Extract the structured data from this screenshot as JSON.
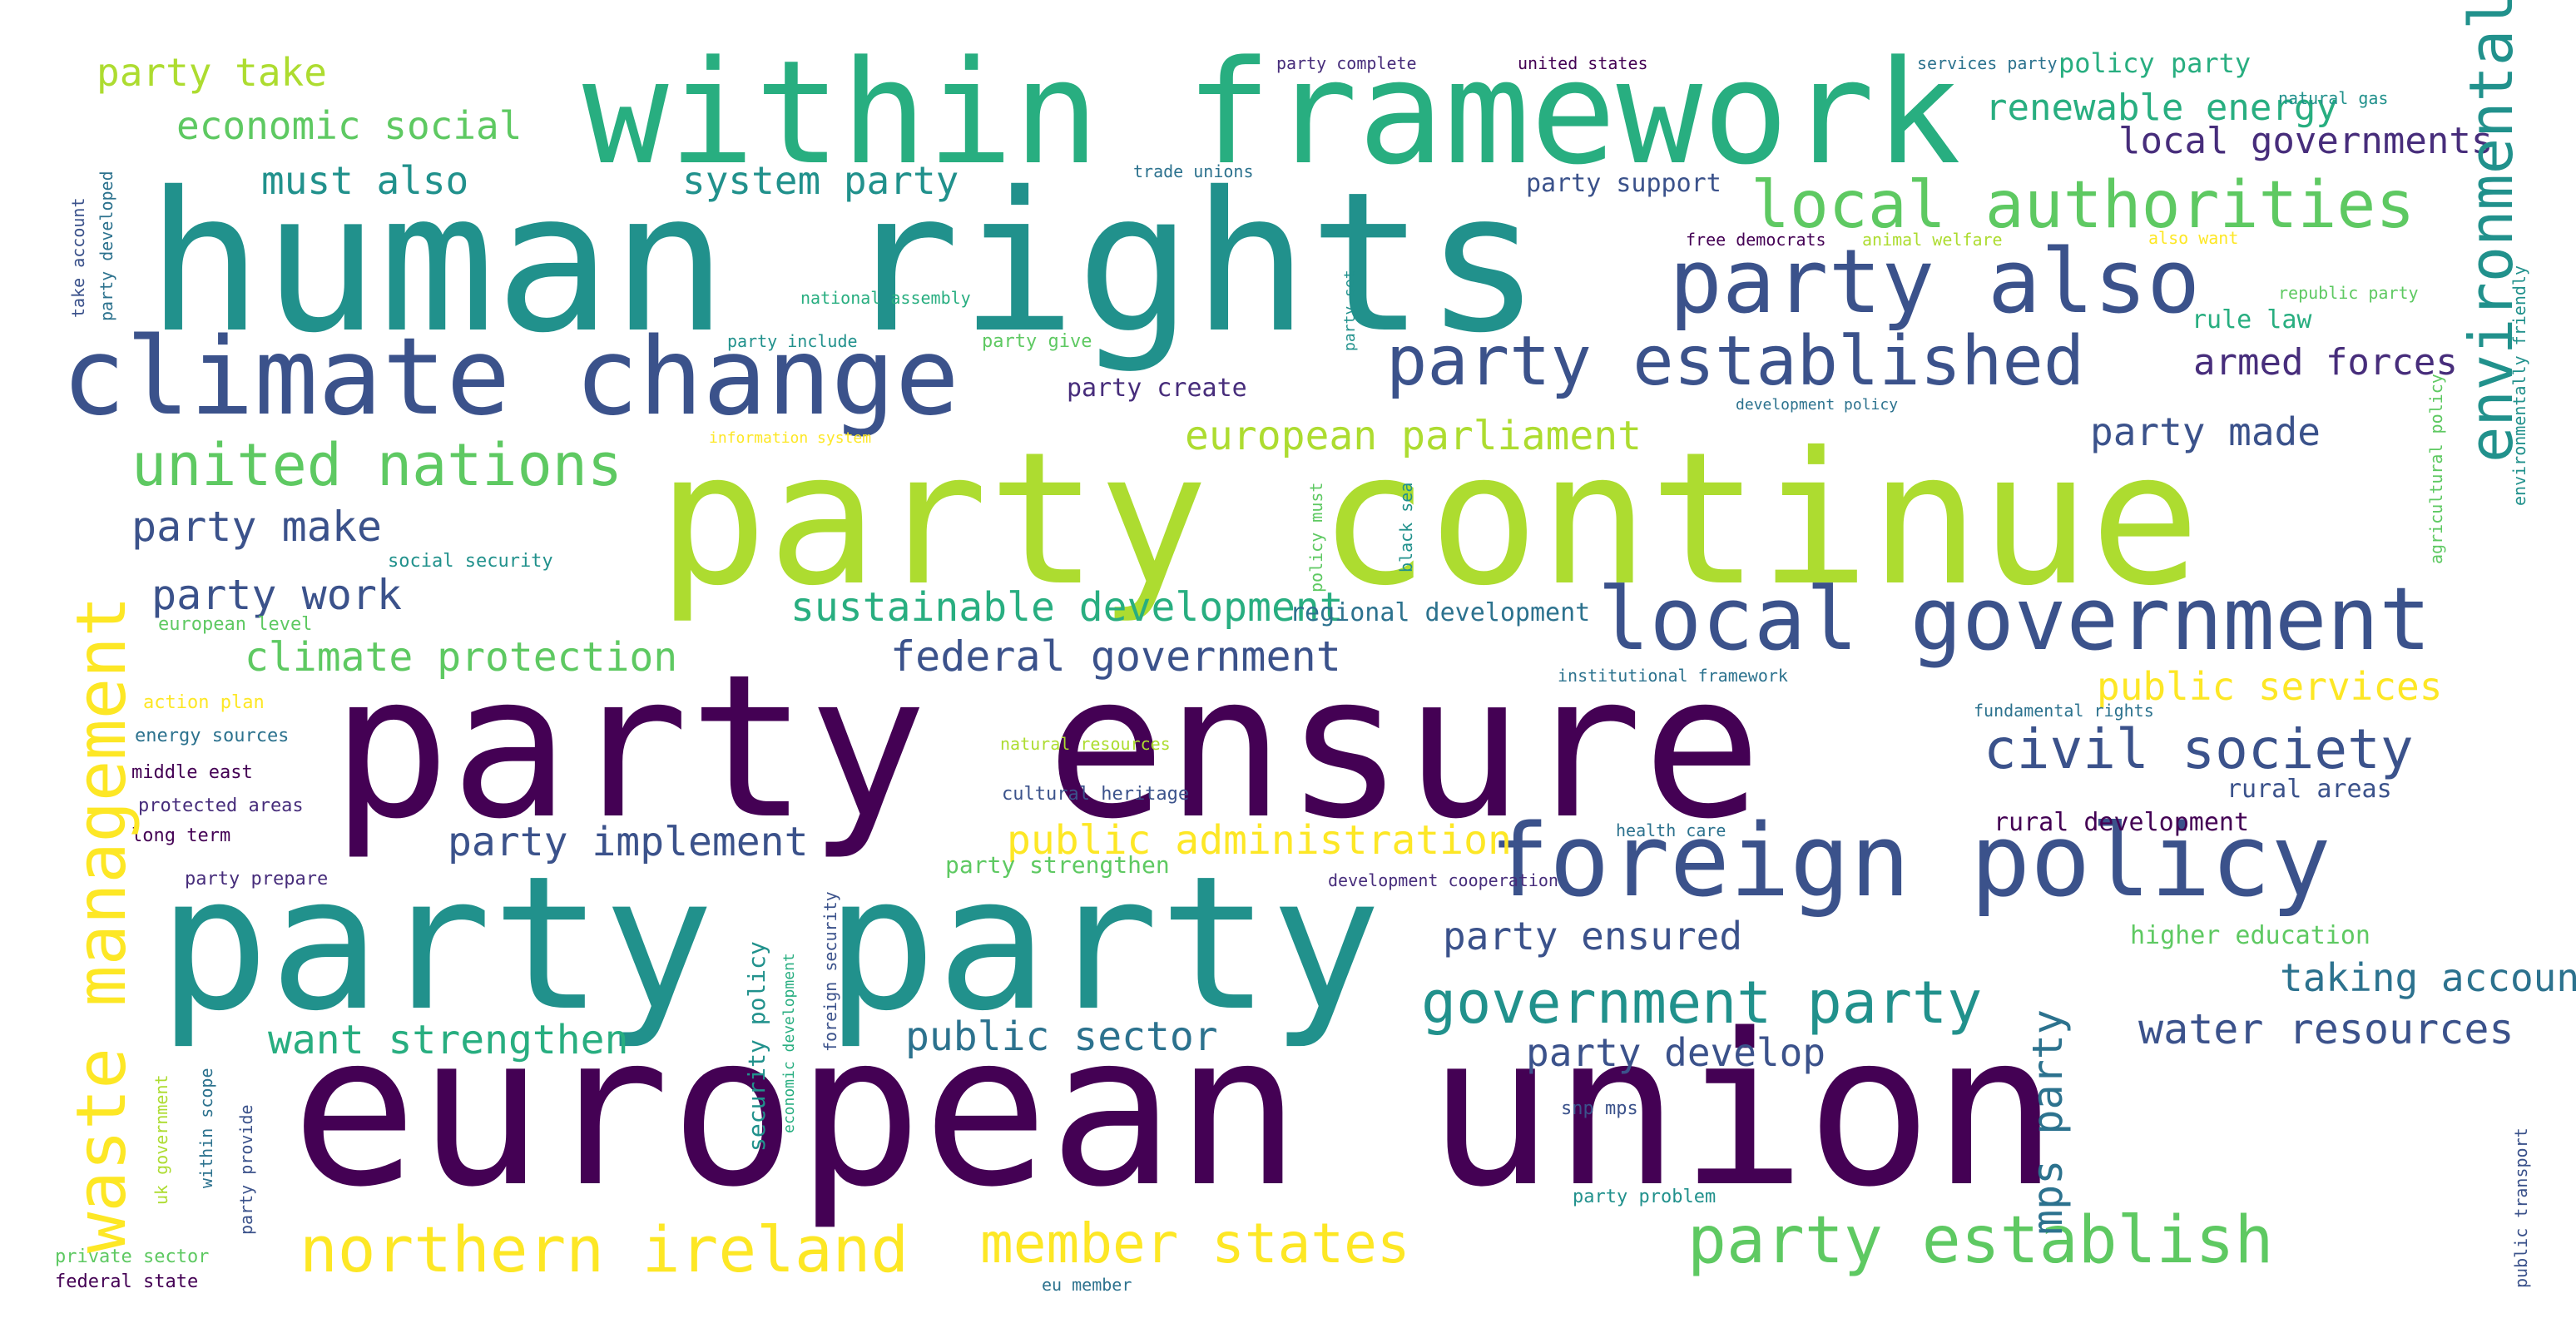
{
  "palette": [
    "#440154",
    "#472d7b",
    "#3b528b",
    "#2c728e",
    "#21918c",
    "#28ae80",
    "#5ec962",
    "#addc30",
    "#fde725"
  ],
  "words": [
    {
      "text": "human rights",
      "color": "#21918c"
    },
    {
      "text": "party continue",
      "color": "#addc30"
    },
    {
      "text": "party ensure",
      "color": "#440154"
    },
    {
      "text": "european union",
      "color": "#440154"
    },
    {
      "text": "party party",
      "color": "#21918c"
    },
    {
      "text": "within framework",
      "color": "#28ae80"
    },
    {
      "text": "climate change",
      "color": "#3b528b"
    },
    {
      "text": "foreign policy",
      "color": "#3b528b"
    },
    {
      "text": "local government",
      "color": "#3b528b"
    },
    {
      "text": "party also",
      "color": "#3b528b"
    },
    {
      "text": "party established",
      "color": "#3b528b"
    },
    {
      "text": "local authorities",
      "color": "#5ec962"
    },
    {
      "text": "party establish",
      "color": "#5ec962"
    },
    {
      "text": "northern ireland",
      "color": "#fde725"
    },
    {
      "text": "member states",
      "color": "#fde725"
    },
    {
      "text": "government party",
      "color": "#21918c"
    },
    {
      "text": "united nations",
      "color": "#5ec962"
    },
    {
      "text": "civil society",
      "color": "#3b528b"
    },
    {
      "text": "party make",
      "color": "#3b528b"
    },
    {
      "text": "party work",
      "color": "#3b528b"
    },
    {
      "text": "climate protection",
      "color": "#5ec962"
    },
    {
      "text": "federal government",
      "color": "#3b528b"
    },
    {
      "text": "european parliament",
      "color": "#addc30"
    },
    {
      "text": "sustainable development",
      "color": "#28ae80"
    },
    {
      "text": "public administration",
      "color": "#fde725"
    },
    {
      "text": "party implement",
      "color": "#3b528b"
    },
    {
      "text": "want strengthen",
      "color": "#28ae80"
    },
    {
      "text": "public sector",
      "color": "#2c728e"
    },
    {
      "text": "party develop",
      "color": "#3b528b"
    },
    {
      "text": "party ensured",
      "color": "#3b528b"
    },
    {
      "text": "water resources",
      "color": "#3b528b"
    },
    {
      "text": "public services",
      "color": "#fde725"
    },
    {
      "text": "taking account",
      "color": "#2c728e"
    },
    {
      "text": "must also",
      "color": "#21918c"
    },
    {
      "text": "system party",
      "color": "#21918c"
    },
    {
      "text": "party take",
      "color": "#addc30"
    },
    {
      "text": "economic social",
      "color": "#5ec962"
    },
    {
      "text": "renewable energy",
      "color": "#28ae80"
    },
    {
      "text": "local governments",
      "color": "#472d7b"
    },
    {
      "text": "armed forces",
      "color": "#472d7b"
    },
    {
      "text": "party made",
      "color": "#3b528b"
    },
    {
      "text": "policy party",
      "color": "#28ae80"
    },
    {
      "text": "rule law",
      "color": "#28ae80"
    },
    {
      "text": "party create",
      "color": "#472d7b"
    },
    {
      "text": "regional development",
      "color": "#2c728e"
    },
    {
      "text": "rural areas",
      "color": "#3b528b"
    },
    {
      "text": "rural development",
      "color": "#440154"
    },
    {
      "text": "higher education",
      "color": "#5ec962"
    },
    {
      "text": "party strengthen",
      "color": "#5ec962"
    },
    {
      "text": "party support",
      "color": "#3b528b"
    },
    {
      "text": "social security",
      "color": "#21918c"
    },
    {
      "text": "european level",
      "color": "#5ec962"
    },
    {
      "text": "action plan",
      "color": "#fde725"
    },
    {
      "text": "energy sources",
      "color": "#2c728e"
    },
    {
      "text": "middle east",
      "color": "#440154"
    },
    {
      "text": "protected areas",
      "color": "#472d7b"
    },
    {
      "text": "long term",
      "color": "#440154"
    },
    {
      "text": "party prepare",
      "color": "#472d7b"
    },
    {
      "text": "cultural heritage",
      "color": "#3b528b"
    },
    {
      "text": "natural resources",
      "color": "#addc30"
    },
    {
      "text": "development cooperation",
      "color": "#472d7b"
    },
    {
      "text": "health care",
      "color": "#2c728e"
    },
    {
      "text": "snp mps",
      "color": "#3b528b"
    },
    {
      "text": "party problem",
      "color": "#21918c"
    },
    {
      "text": "eu member",
      "color": "#2c728e"
    },
    {
      "text": "federal state",
      "color": "#440154"
    },
    {
      "text": "private sector",
      "color": "#5ec962"
    },
    {
      "text": "institutional framework",
      "color": "#2c728e"
    },
    {
      "text": "fundamental rights",
      "color": "#2c728e"
    },
    {
      "text": "information system",
      "color": "#fde725"
    },
    {
      "text": "development policy",
      "color": "#2c728e"
    },
    {
      "text": "party give",
      "color": "#5ec962"
    },
    {
      "text": "party include",
      "color": "#21918c"
    },
    {
      "text": "national assembly",
      "color": "#28ae80"
    },
    {
      "text": "free democrats",
      "color": "#440154"
    },
    {
      "text": "animal welfare",
      "color": "#addc30"
    },
    {
      "text": "also want",
      "color": "#fde725"
    },
    {
      "text": "republic party",
      "color": "#5ec962"
    },
    {
      "text": "natural gas",
      "color": "#21918c"
    },
    {
      "text": "services party",
      "color": "#2c728e"
    },
    {
      "text": "united states",
      "color": "#440154"
    },
    {
      "text": "party complete",
      "color": "#472d7b"
    },
    {
      "text": "trade unions",
      "color": "#2c728e"
    },
    {
      "text": "environmental protection",
      "color": "#21918c"
    },
    {
      "text": "waste management",
      "color": "#fde725"
    },
    {
      "text": "mps party",
      "color": "#2c728e"
    },
    {
      "text": "take account",
      "color": "#3b528b"
    },
    {
      "text": "party developed",
      "color": "#2c728e"
    },
    {
      "text": "party set",
      "color": "#21918c"
    },
    {
      "text": "policy must",
      "color": "#5ec962"
    },
    {
      "text": "black sea",
      "color": "#21918c"
    },
    {
      "text": "agricultural policy",
      "color": "#5ec962"
    },
    {
      "text": "environmentally friendly",
      "color": "#21918c"
    },
    {
      "text": "security policy",
      "color": "#21918c"
    },
    {
      "text": "economic development",
      "color": "#28ae80"
    },
    {
      "text": "foreign security",
      "color": "#3b528b"
    },
    {
      "text": "uk government",
      "color": "#addc30"
    },
    {
      "text": "within scope",
      "color": "#2c728e"
    },
    {
      "text": "party provide",
      "color": "#3b528b"
    },
    {
      "text": "public transport",
      "color": "#3b528b"
    }
  ]
}
